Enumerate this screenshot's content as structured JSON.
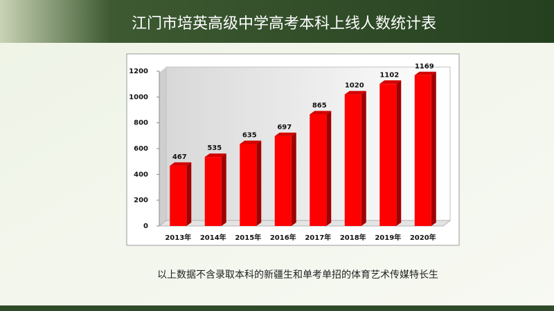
{
  "chart_data": {
    "type": "bar3d",
    "title": "江门市培英高级中学高考本科上线人数统计表",
    "note": "以上数据不含录取本科的新疆生和单考单招的体育艺术传媒特长生",
    "categories": [
      "2013年",
      "2014年",
      "2015年",
      "2016年",
      "2017年",
      "2018年",
      "2019年",
      "2020年"
    ],
    "series": [
      {
        "color": "#ff0000",
        "values": [
          467,
          535,
          635,
          697,
          865,
          1020,
          1102,
          1169
        ]
      }
    ],
    "ylim": [
      0,
      1200
    ],
    "yticks": [
      0,
      200,
      400,
      600,
      800,
      1000,
      1200
    ],
    "grid": false
  }
}
